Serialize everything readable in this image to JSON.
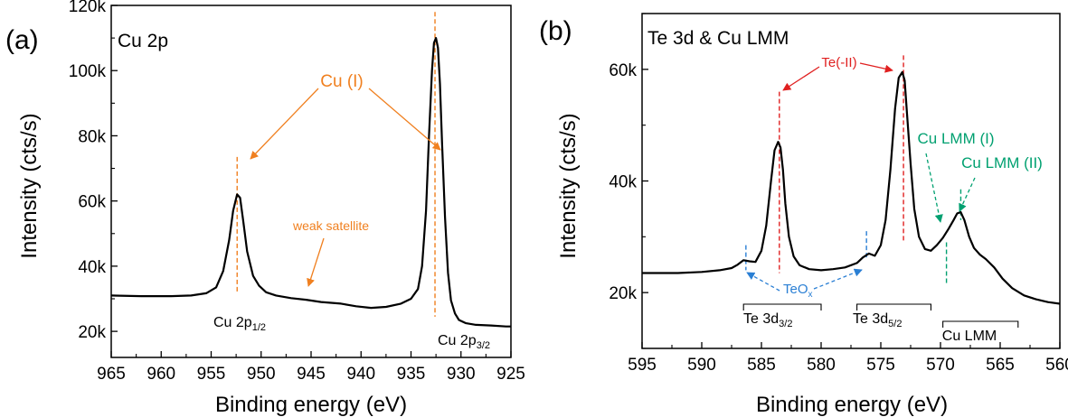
{
  "chart_data": [
    {
      "panel_label": "(a)",
      "title": "Cu 2p",
      "type": "line",
      "xlabel": "Binding energy (eV)",
      "ylabel": "Intensity (cts/s)",
      "xlim": [
        965,
        925
      ],
      "x_reversed": true,
      "ylim": [
        12000,
        120000
      ],
      "x_ticks": [
        965,
        960,
        955,
        950,
        945,
        940,
        935,
        930,
        925
      ],
      "x_tick_labels": [
        "965",
        "960",
        "955",
        "950",
        "945",
        "940",
        "935",
        "930",
        "925"
      ],
      "y_ticks": [
        20000,
        40000,
        60000,
        80000,
        100000,
        120000
      ],
      "y_tick_labels": [
        "20k",
        "40k",
        "60k",
        "80k",
        "100k",
        "120k"
      ],
      "grid": false,
      "line_color": "#000000",
      "series": [
        {
          "x": [
            965,
            962,
            959,
            957,
            955.5,
            954.5,
            953.8,
            953.2,
            952.8,
            952.4,
            952.1,
            951.8,
            951.4,
            950.8,
            950.2,
            949.5,
            948.5,
            947,
            945.5,
            944,
            942,
            940.5,
            939,
            937.5,
            936,
            935,
            934.3,
            933.9,
            933.5,
            933.2,
            932.9,
            932.7,
            932.5,
            932.3,
            932.1,
            931.9,
            931.6,
            931.3,
            931,
            930.6,
            930.2,
            929.5,
            928.5,
            927,
            925.5,
            925
          ],
          "y": [
            31000,
            30800,
            30800,
            31000,
            31700,
            33500,
            38500,
            48000,
            57000,
            62000,
            61000,
            54000,
            44500,
            37000,
            34000,
            32000,
            31000,
            30200,
            29700,
            29000,
            28500,
            27700,
            27200,
            27500,
            28500,
            30000,
            33000,
            40000,
            57000,
            80000,
            100000,
            108500,
            110000,
            107000,
            96000,
            78000,
            55000,
            38000,
            29500,
            25500,
            23500,
            22500,
            22000,
            21800,
            21500,
            21500
          ]
        }
      ],
      "annotations": [
        {
          "text": "Cu (I)",
          "color": "#f08020"
        },
        {
          "text": "weak satellite",
          "color": "#f08020"
        },
        {
          "text_main": "Cu 2p",
          "text_sub": "1/2",
          "color": "#000000"
        },
        {
          "text_main": "Cu 2p",
          "text_sub": "3/2",
          "color": "#000000"
        }
      ],
      "peak_markers": [
        {
          "x": 952.4,
          "y_top": 73500,
          "y_bottom": 32000,
          "color": "#f08020"
        },
        {
          "x": 932.6,
          "y_top": 118000,
          "y_bottom": 24500,
          "color": "#f08020"
        }
      ]
    },
    {
      "panel_label": "(b)",
      "title": "Te 3d & Cu LMM",
      "type": "line",
      "xlabel": "Binding energy (eV)",
      "ylabel": "Intensity (cts/s)",
      "xlim": [
        595,
        560
      ],
      "x_reversed": true,
      "ylim": [
        10000,
        70000
      ],
      "x_ticks": [
        595,
        590,
        585,
        580,
        575,
        570,
        565,
        560
      ],
      "x_tick_labels": [
        "595",
        "590",
        "585",
        "580",
        "575",
        "570",
        "565",
        "560"
      ],
      "y_ticks": [
        20000,
        40000,
        60000
      ],
      "y_tick_labels": [
        "20k",
        "40k",
        "60k"
      ],
      "grid": false,
      "line_color": "#000000",
      "series": [
        {
          "x": [
            595,
            592,
            590,
            588.5,
            587.5,
            587,
            586.5,
            586,
            585.5,
            585,
            584.6,
            584.2,
            583.9,
            583.6,
            583.4,
            583.2,
            583,
            582.7,
            582.3,
            581.8,
            581,
            580,
            579,
            578,
            577,
            576.5,
            576,
            575.5,
            575,
            574.6,
            574.2,
            573.8,
            573.5,
            573.2,
            573,
            572.8,
            572.5,
            572.2,
            571.8,
            571.3,
            570.8,
            570.3,
            569.8,
            569.3,
            568.9,
            568.6,
            568.3,
            568,
            567.6,
            567.2,
            566.7,
            566.2,
            565.5,
            564.8,
            564,
            563,
            562,
            561,
            560
          ],
          "y": [
            23500,
            23500,
            23700,
            24000,
            24400,
            25000,
            25800,
            25600,
            25500,
            27500,
            32000,
            40000,
            45500,
            47000,
            46000,
            42000,
            36000,
            30000,
            26500,
            24900,
            24200,
            24000,
            24200,
            24500,
            25300,
            26300,
            27000,
            26600,
            28500,
            33000,
            42000,
            53000,
            58500,
            59500,
            58000,
            52000,
            43000,
            35000,
            30000,
            27800,
            27500,
            28500,
            29800,
            31500,
            33000,
            34200,
            34400,
            33000,
            30000,
            28000,
            26800,
            26000,
            24500,
            22500,
            20800,
            19500,
            18800,
            18300,
            18000
          ]
        }
      ],
      "annotations": [
        {
          "text": "Te(-II)",
          "color": "#e02020"
        },
        {
          "text": "Cu LMM (I)",
          "color": "#00a070"
        },
        {
          "text": "Cu LMM (II)",
          "color": "#00a070"
        },
        {
          "text_main": "TeO",
          "text_sub": "x",
          "color": "#2a7fd4"
        },
        {
          "text_main": "Te 3d",
          "text_sub": "3/2",
          "color": "#000000"
        },
        {
          "text_main": "Te 3d",
          "text_sub": "5/2",
          "color": "#000000"
        },
        {
          "text": "Cu LMM",
          "color": "#000000"
        }
      ],
      "peak_markers": [
        {
          "x": 583.5,
          "y_top": 56000,
          "y_bottom": 23500,
          "color": "#e02020"
        },
        {
          "x": 573.1,
          "y_top": 62500,
          "y_bottom": 29000,
          "color": "#e02020"
        },
        {
          "x": 586.3,
          "y_top": 28500,
          "y_bottom": 24000,
          "color": "#2a7fd4"
        },
        {
          "x": 576.2,
          "y_top": 31000,
          "y_bottom": 26000,
          "color": "#2a7fd4"
        },
        {
          "x": 569.5,
          "y_top": 29000,
          "y_bottom": 21500,
          "color": "#00a070"
        },
        {
          "x": 568.3,
          "y_top": 38500,
          "y_bottom": 33000,
          "color": "#00a070"
        }
      ],
      "range_brackets": [
        {
          "x_from": 586.5,
          "x_to": 580.0
        },
        {
          "x_from": 577.0,
          "x_to": 570.8
        },
        {
          "x_from": 569.8,
          "x_to": 563.5
        }
      ]
    }
  ]
}
